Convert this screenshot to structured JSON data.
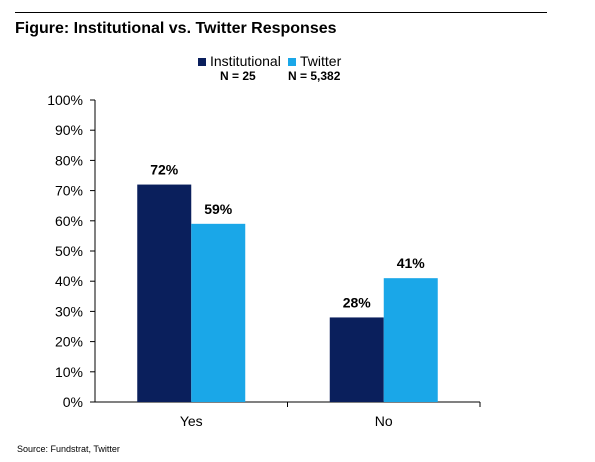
{
  "title": "Figure: Institutional vs. Twitter Responses",
  "source": "Source: Fundstrat, Twitter",
  "legend": [
    {
      "name": "Institutional",
      "n_label": "N = 25",
      "color": "#0a1f5c"
    },
    {
      "name": "Twitter",
      "n_label": "N = 5,382",
      "color": "#1aa7e8"
    }
  ],
  "chart_data": {
    "type": "bar",
    "title": "Figure: Institutional vs. Twitter Responses",
    "xlabel": "",
    "ylabel": "",
    "categories": [
      "Yes",
      "No"
    ],
    "series": [
      {
        "name": "Institutional",
        "values": [
          72,
          28
        ],
        "labels": [
          "72%",
          "28%"
        ],
        "color": "#0a1f5c"
      },
      {
        "name": "Twitter",
        "values": [
          59,
          41
        ],
        "labels": [
          "59%",
          "41%"
        ],
        "color": "#1aa7e8"
      }
    ],
    "ylim": [
      0,
      100
    ],
    "y_ticks": [
      "0%",
      "10%",
      "20%",
      "30%",
      "40%",
      "50%",
      "60%",
      "70%",
      "80%",
      "90%",
      "100%"
    ],
    "grid": false,
    "legend_position": "top-center"
  }
}
